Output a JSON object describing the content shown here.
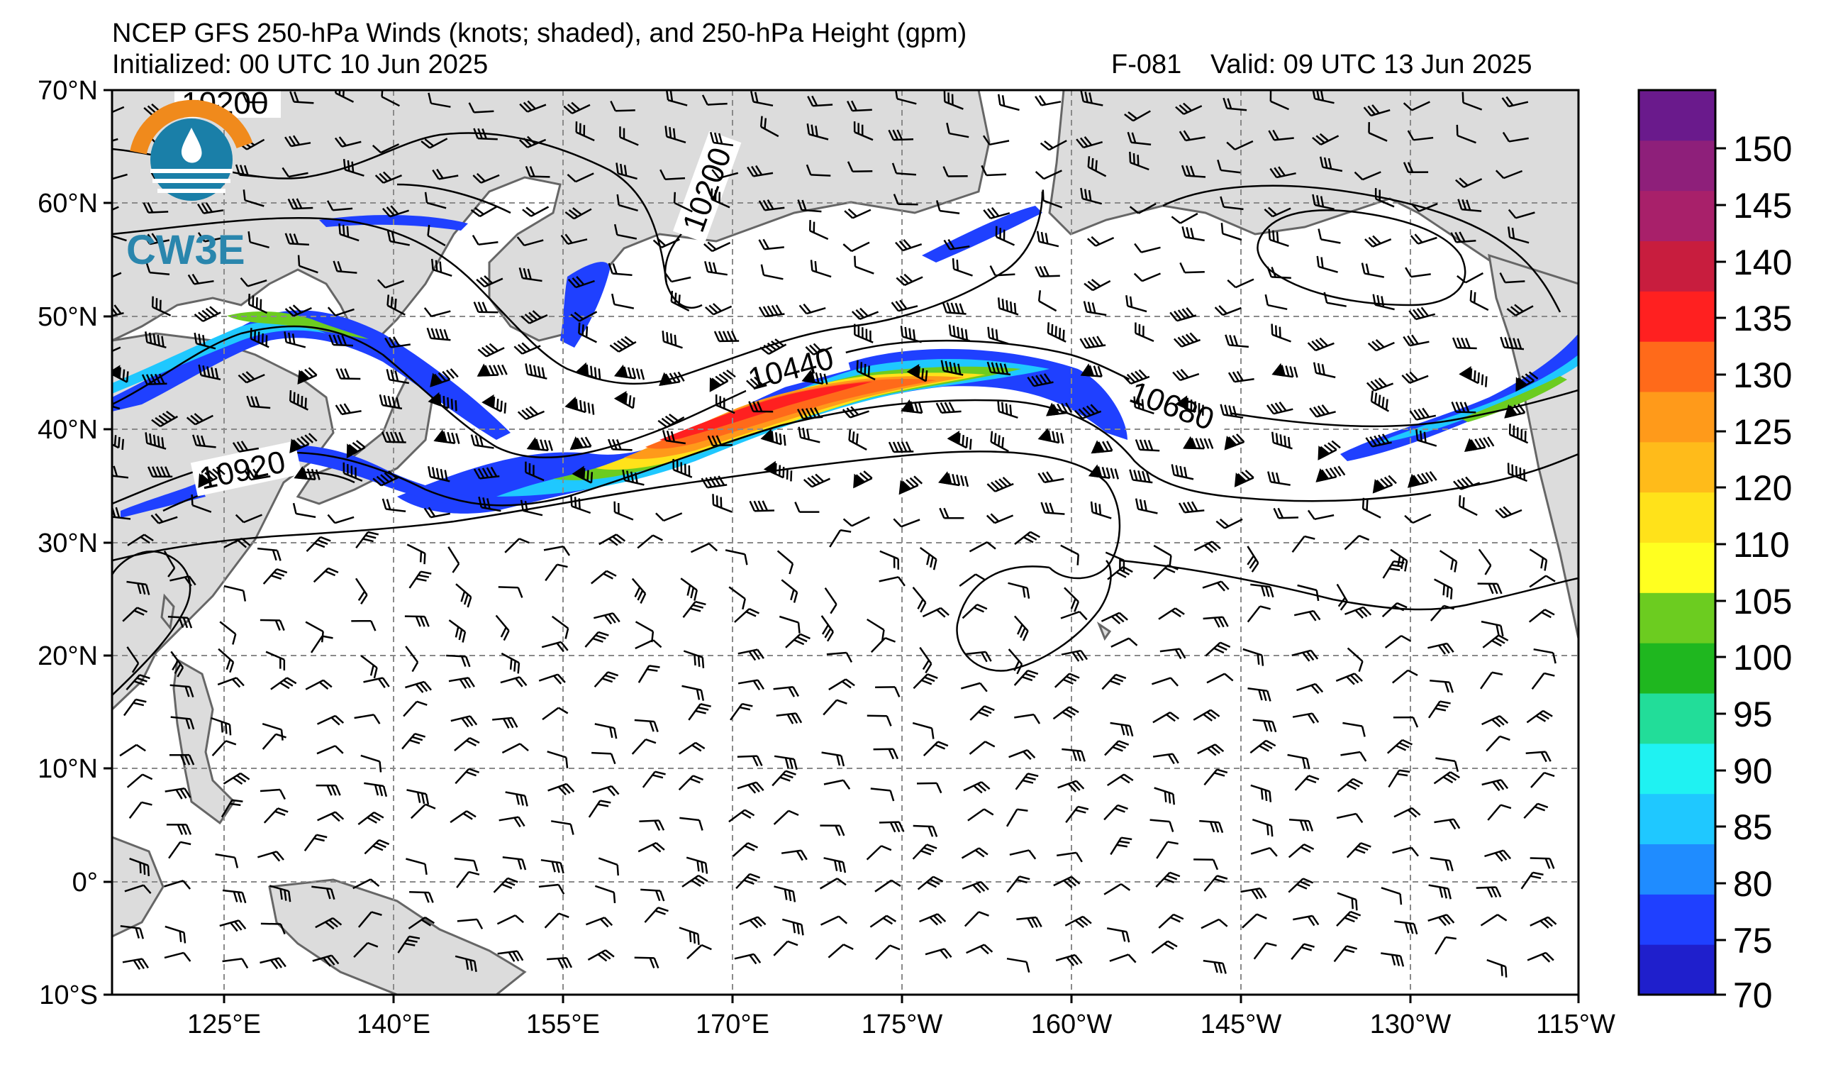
{
  "header": {
    "title": "NCEP GFS 250-hPa Winds (knots; shaded), and 250-hPa Height (gpm)",
    "initialized": "Initialized: 00 UTC 10 Jun 2025",
    "forecast_hour": "F-081",
    "valid": "Valid: 09 UTC 13 Jun 2025"
  },
  "logo": {
    "text": "CW3E"
  },
  "map": {
    "lat_labels": [
      "70°N",
      "60°N",
      "50°N",
      "40°N",
      "30°N",
      "20°N",
      "10°N",
      "0°",
      "10°S"
    ],
    "lon_labels": [
      "125°E",
      "140°E",
      "155°E",
      "170°E",
      "175°W",
      "160°W",
      "145°W",
      "130°W",
      "115°W"
    ],
    "land_color": "#dcdcdc",
    "ocean_color": "#ffffff",
    "grid_style": "dashed gray",
    "contour_labels": [
      "10200",
      "10200",
      "10440",
      "10680",
      "10920"
    ]
  },
  "colorbar": {
    "ticks": [
      "150",
      "145",
      "140",
      "135",
      "130",
      "125",
      "120",
      "110",
      "105",
      "100",
      "95",
      "90",
      "85",
      "80",
      "75",
      "70"
    ],
    "colors": [
      "#6a1a8c",
      "#8e1f7a",
      "#a8206a",
      "#c81d3e",
      "#ff2020",
      "#ff6a1a",
      "#ff9a1a",
      "#ffbb1a",
      "#ffe21a",
      "#ffff20",
      "#6ccc20",
      "#1fb71f",
      "#22dd99",
      "#1ff2f2",
      "#1fc8ff",
      "#1f8cff",
      "#1f40ff",
      "#1f1fcc"
    ]
  }
}
